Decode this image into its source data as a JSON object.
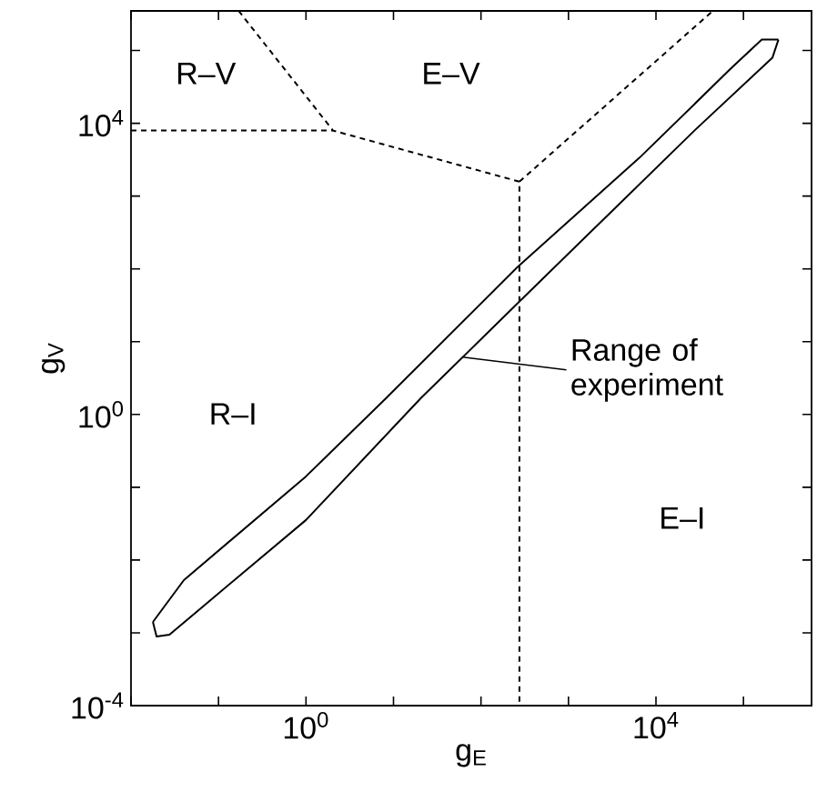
{
  "chart_data": {
    "type": "line",
    "xlabel": "g$_{E}$",
    "ylabel": "g$_{V}$",
    "log": "xy",
    "marker": "none",
    "xlim": [
      0.01,
      600000
    ],
    "ylim": [
      0.0001,
      350000
    ],
    "xticks": [
      {
        "value": 0.01,
        "label": null
      },
      {
        "value": 0.1,
        "label": null
      },
      {
        "value": 1,
        "label": "10$^{0}$"
      },
      {
        "value": 10,
        "label": null
      },
      {
        "value": 100,
        "label": null
      },
      {
        "value": 1000,
        "label": null
      },
      {
        "value": 10000,
        "label": "10$^{4}$"
      },
      {
        "value": 100000,
        "label": null
      }
    ],
    "yticks": [
      {
        "value": 0.0001,
        "label": "10$^{-4}$"
      },
      {
        "value": 0.001,
        "label": null
      },
      {
        "value": 0.01,
        "label": null
      },
      {
        "value": 0.1,
        "label": null
      },
      {
        "value": 1,
        "label": "10$^{0}$"
      },
      {
        "value": 10,
        "label": null
      },
      {
        "value": 100,
        "label": null
      },
      {
        "value": 1000,
        "label": null
      },
      {
        "value": 10000,
        "label": "10$^{4}$"
      },
      {
        "value": 100000,
        "label": null
      }
    ],
    "series": [
      {
        "color": "#000000",
        "line_style": "dashed",
        "x": [
          0.01,
          2.04
        ],
        "values": [
          7940,
          7940
        ]
      },
      {
        "color": "#000000",
        "line_style": "dashed",
        "x": [
          0.17,
          2.04,
          275,
          275
        ],
        "values": [
          350000,
          7940,
          1580,
          0.0001
        ]
      },
      {
        "color": "#000000",
        "line_style": "dashed",
        "x": [
          275,
          44700
        ],
        "values": [
          1580,
          350000
        ]
      },
      {
        "color": "#000000",
        "line_style": "solid",
        "x": [
          0.0178,
          0.0402,
          1,
          8.26,
          261,
          6460,
          71400,
          162000,
          251000
        ],
        "values": [
          0.00141,
          0.0053,
          0.141,
          1.68,
          106,
          3350,
          56200,
          141000,
          141000
        ]
      },
      {
        "color": "#000000",
        "line_style": "solid",
        "x": [
          0.0178,
          0.0196,
          0.0275,
          0.0646,
          1,
          20.6,
          261,
          2880,
          27500,
          214000,
          251000
        ],
        "values": [
          0.00141,
          0.00089,
          0.00094,
          0.00224,
          0.0355,
          1.68,
          33.5,
          562,
          7940,
          79400,
          141000
        ]
      }
    ],
    "annotations": [
      "R–V",
      "E–V",
      "R–I",
      "E–I",
      {
        "text": "Range of experiment",
        "x": 61.7,
        "y": 6.12
      }
    ]
  }
}
